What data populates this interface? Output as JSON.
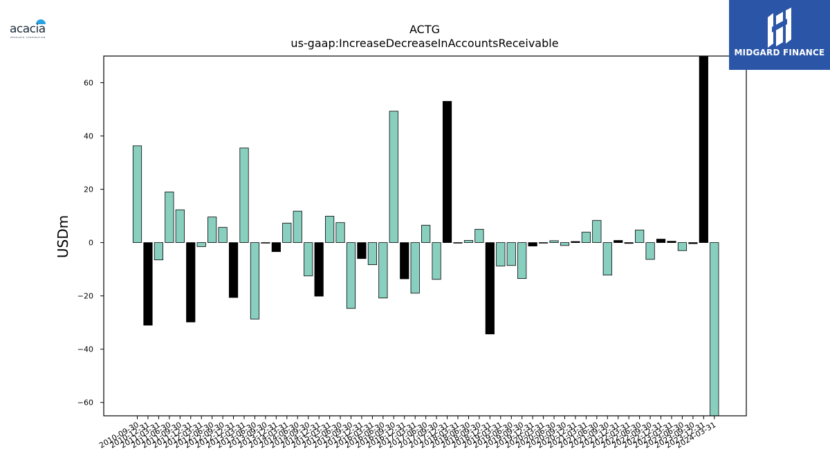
{
  "branding": {
    "left_logo_text": "acacia",
    "left_logo_subtext": "RESEARCH CORPORATION",
    "right_logo_text": "MIDGARD FINANCE"
  },
  "chart_data": {
    "type": "bar",
    "title": "ACTG",
    "subtitle": "us-gaap:IncreaseDecreaseInAccountsReceivable",
    "xlabel": "",
    "ylabel": "USDm",
    "ylim": [
      -65,
      70
    ],
    "yticks": [
      -60,
      -40,
      -20,
      0,
      20,
      40,
      60
    ],
    "grid": false,
    "colors": {
      "teal": "#88cfc0",
      "black": "#000000",
      "edge": "#000000"
    },
    "categories": [
      "2010-09-30",
      "2010-12-31",
      "2011-03-31",
      "2011-06-30",
      "2011-09-30",
      "2011-12-31",
      "2012-03-31",
      "2012-06-30",
      "2012-09-30",
      "2012-12-31",
      "2013-03-31",
      "2013-06-30",
      "2013-09-30",
      "2013-12-31",
      "2014-03-31",
      "2014-06-30",
      "2014-09-30",
      "2014-12-31",
      "2015-03-31",
      "2015-06-30",
      "2015-09-30",
      "2015-12-31",
      "2016-03-31",
      "2016-06-30",
      "2016-09-30",
      "2016-12-31",
      "2017-03-31",
      "2017-06-30",
      "2017-09-30",
      "2017-12-31",
      "2018-03-31",
      "2018-06-30",
      "2018-09-30",
      "2018-12-31",
      "2019-03-31",
      "2019-06-30",
      "2019-09-30",
      "2019-12-31",
      "2020-03-31",
      "2020-06-30",
      "2020-09-30",
      "2020-12-31",
      "2021-03-31",
      "2021-06-30",
      "2021-09-30",
      "2021-12-31",
      "2022-03-31",
      "2022-06-30",
      "2022-09-30",
      "2022-12-31",
      "2023-03-31",
      "2023-06-30",
      "2023-09-30",
      "2023-12-31",
      "2024-03-31"
    ],
    "values": [
      36.3,
      -31.0,
      -6.5,
      19.0,
      12.3,
      -29.8,
      -1.5,
      9.6,
      5.7,
      -20.6,
      35.5,
      -28.7,
      -0.2,
      -3.4,
      7.3,
      11.8,
      -12.5,
      -20.1,
      9.9,
      7.5,
      -24.7,
      -6.0,
      -8.3,
      -20.8,
      49.3,
      -13.6,
      -19.0,
      6.5,
      -13.8,
      53.0,
      -0.1,
      0.8,
      5.0,
      -34.3,
      -8.8,
      -8.6,
      -13.5,
      -1.3,
      -0.1,
      0.7,
      -1.1,
      0.4,
      3.9,
      8.3,
      -12.2,
      0.8,
      -0.3,
      4.7,
      -6.3,
      1.3,
      0.5,
      -3.0,
      -0.4,
      70.0,
      -65.0
    ],
    "bar_colors": [
      "teal",
      "black",
      "teal",
      "teal",
      "teal",
      "black",
      "teal",
      "teal",
      "teal",
      "black",
      "teal",
      "teal",
      "black",
      "black",
      "teal",
      "teal",
      "teal",
      "black",
      "teal",
      "teal",
      "teal",
      "black",
      "teal",
      "teal",
      "teal",
      "black",
      "teal",
      "teal",
      "teal",
      "black",
      "black",
      "teal",
      "teal",
      "black",
      "teal",
      "teal",
      "teal",
      "black",
      "black",
      "teal",
      "teal",
      "black",
      "teal",
      "teal",
      "teal",
      "black",
      "black",
      "teal",
      "teal",
      "black",
      "black",
      "teal",
      "black",
      "black",
      "teal"
    ]
  }
}
